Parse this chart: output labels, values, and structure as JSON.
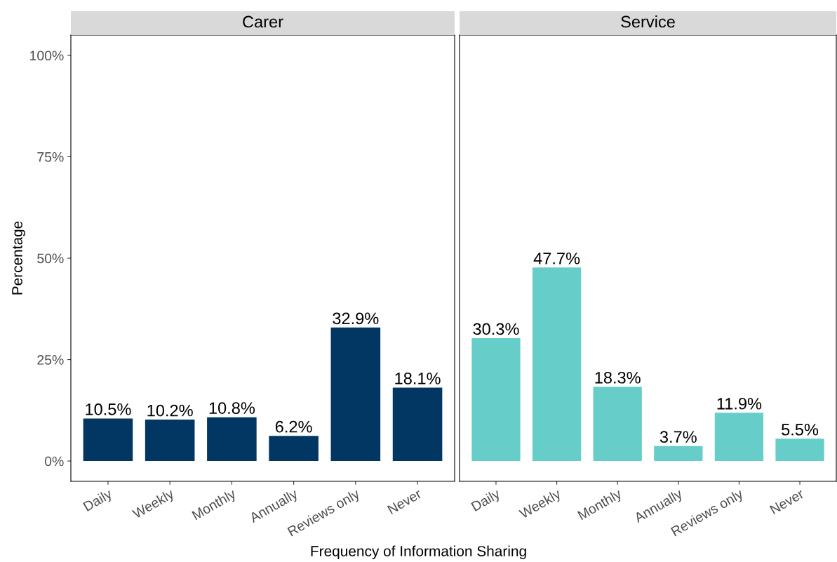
{
  "chart_data": [
    {
      "type": "bar",
      "title": "Carer",
      "ylabel": "Percentage",
      "xlabel": "Frequency of Information Sharing",
      "categories": [
        "Daily",
        "Weekly",
        "Monthly",
        "Annually",
        "Reviews only",
        "Never"
      ],
      "values": [
        10.5,
        10.2,
        10.8,
        6.2,
        32.9,
        18.1
      ],
      "value_labels": [
        "10.5%",
        "10.2%",
        "10.8%",
        "6.2%",
        "32.9%",
        "18.1%"
      ],
      "color": "#023763",
      "ylim": [
        -5,
        105
      ],
      "yticks": [
        {
          "value": 0,
          "label": "0%"
        },
        {
          "value": 25,
          "label": "25%"
        },
        {
          "value": 50,
          "label": "50%"
        },
        {
          "value": 75,
          "label": "75%"
        },
        {
          "value": 100,
          "label": "100%"
        }
      ],
      "grid": false,
      "legend": false
    },
    {
      "type": "bar",
      "title": "Service",
      "categories": [
        "Daily",
        "Weekly",
        "Monthly",
        "Annually",
        "Reviews only",
        "Never"
      ],
      "values": [
        30.3,
        47.7,
        18.3,
        3.7,
        11.9,
        5.5
      ],
      "value_labels": [
        "30.3%",
        "47.7%",
        "18.3%",
        "3.7%",
        "11.9%",
        "5.5%"
      ],
      "color": "#66cdc9",
      "ylim": [
        -5,
        105
      ],
      "tick_labels": "x",
      "grid": false,
      "legend": false
    }
  ]
}
